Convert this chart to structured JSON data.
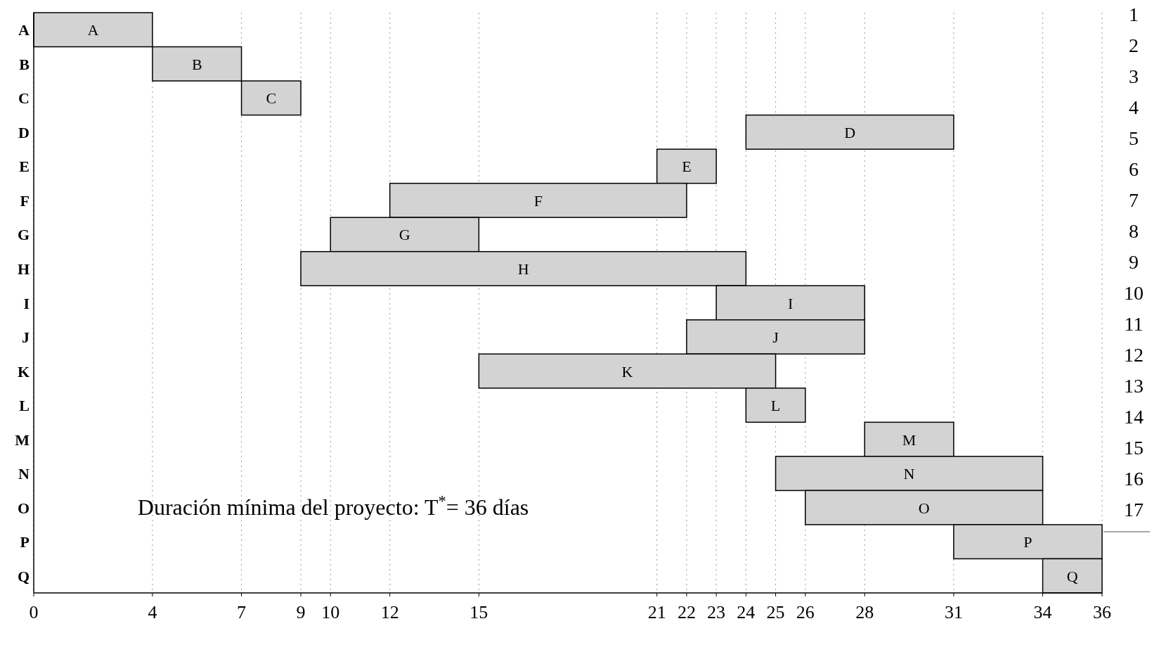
{
  "chart_data": {
    "type": "bar",
    "orientation": "horizontal",
    "categories": [
      "A",
      "B",
      "C",
      "D",
      "E",
      "F",
      "G",
      "H",
      "I",
      "J",
      "K",
      "L",
      "M",
      "N",
      "O",
      "P",
      "Q"
    ],
    "base": [
      0,
      4,
      7,
      24,
      21,
      12,
      10,
      9,
      23,
      22,
      15,
      24,
      28,
      25,
      26,
      31,
      34
    ],
    "values": [
      4,
      3,
      2,
      7,
      2,
      10,
      5,
      15,
      5,
      6,
      10,
      2,
      3,
      9,
      8,
      5,
      2
    ],
    "color": "#d3d3d3",
    "xlim": [
      0,
      36
    ],
    "xticks": [
      0,
      4,
      7,
      9,
      10,
      12,
      15,
      21,
      22,
      23,
      24,
      25,
      26,
      28,
      31,
      34,
      36
    ],
    "grid": "x",
    "annotations": [
      "Duración mínima del proyecto: T$^{*}$=  36 días",
      "1",
      "2",
      "3",
      "4",
      "5",
      "6",
      "7",
      "8",
      "9",
      "10",
      "11",
      "12",
      "13",
      "14",
      "15",
      "16",
      "17"
    ]
  }
}
